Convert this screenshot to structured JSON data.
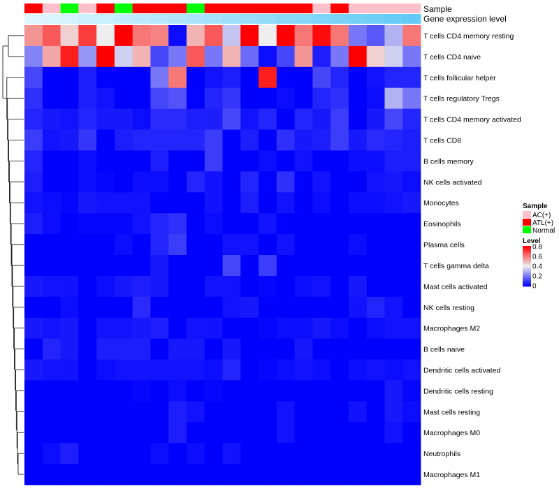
{
  "chart_data": {
    "type": "heatmap",
    "title": "",
    "annotation_labels": {
      "sample": "Sample",
      "expression": "Gene expression level"
    },
    "sample_groups": [
      "ATL(+)",
      "AC(+)",
      "Normal",
      "AC(+)",
      "ATL(+)",
      "Normal",
      "ATL(+)",
      "ATL(+)",
      "ATL(+)",
      "Normal",
      "ATL(+)",
      "ATL(+)",
      "ATL(+)",
      "ATL(+)",
      "ATL(+)",
      "ATL(+)",
      "AC(+)",
      "ATL(+)",
      "AC(+)",
      "AC(+)",
      "AC(+)",
      "AC(+)"
    ],
    "gene_expression_level": [
      0.02,
      0.05,
      0.09,
      0.14,
      0.18,
      0.23,
      0.27,
      0.32,
      0.36,
      0.41,
      0.45,
      0.5,
      0.55,
      0.59,
      0.64,
      0.68,
      0.73,
      0.77,
      0.82,
      0.86,
      0.91,
      0.95
    ],
    "rows": [
      "T cells CD4 memory resting",
      "T cells CD4 naive",
      "T cells follicular helper",
      "T cells regulatory  Tregs",
      "T cells CD4 memory activated",
      "T cells CD8",
      "B cells memory",
      "NK cells activated",
      "Monocytes",
      "Eosinophils",
      "Plasma cells",
      "T cells gamma delta",
      "Mast cells activated",
      "NK cells resting",
      "Macrophages M2",
      "B cells naive",
      "Dendritic cells activated",
      "Dendritic cells resting",
      "Mast cells resting",
      "Macrophages M0",
      "Neutrophils",
      "Macrophages M1"
    ],
    "values": [
      [
        0.55,
        0.65,
        0.45,
        0.7,
        0.4,
        0.8,
        0.6,
        0.58,
        0.02,
        0.5,
        0.65,
        0.33,
        0.8,
        0.4,
        0.8,
        0.6,
        0.78,
        0.6,
        0.2,
        0.15,
        0.3,
        0.6
      ],
      [
        0.22,
        0.52,
        0.75,
        0.25,
        0.8,
        0.35,
        0.5,
        0.12,
        0.2,
        0.65,
        0.2,
        0.5,
        0.18,
        0.02,
        0.12,
        0.55,
        0.05,
        0.2,
        0.8,
        0.45,
        0.35,
        0.2
      ],
      [
        0.12,
        0.0,
        0.0,
        0.05,
        0.0,
        0.0,
        0.0,
        0.2,
        0.6,
        0.0,
        0.03,
        0.05,
        0.0,
        0.75,
        0.0,
        0.0,
        0.12,
        0.06,
        0.0,
        0.03,
        0.06,
        0.06
      ],
      [
        0.08,
        0.0,
        0.0,
        0.05,
        0.03,
        0.0,
        0.0,
        0.12,
        0.14,
        0.0,
        0.06,
        0.09,
        0.0,
        0.0,
        0.02,
        0.0,
        0.06,
        0.08,
        0.0,
        0.02,
        0.3,
        0.2
      ],
      [
        0.06,
        0.04,
        0.03,
        0.06,
        0.04,
        0.04,
        0.02,
        0.07,
        0.07,
        0.05,
        0.05,
        0.12,
        0.03,
        0.06,
        0.0,
        0.06,
        0.04,
        0.1,
        0.0,
        0.04,
        0.12,
        0.06
      ],
      [
        0.1,
        0.03,
        0.04,
        0.09,
        0.0,
        0.05,
        0.06,
        0.06,
        0.06,
        0.06,
        0.1,
        0.0,
        0.05,
        0.0,
        0.08,
        0.04,
        0.05,
        0.1,
        0.04,
        0.07,
        0.06,
        0.05
      ],
      [
        0.06,
        0.0,
        0.0,
        0.02,
        0.0,
        0.0,
        0.0,
        0.05,
        0.0,
        0.0,
        0.1,
        0.0,
        0.0,
        0.02,
        0.0,
        0.03,
        0.0,
        0.0,
        0.02,
        0.02,
        0.05,
        0.05
      ],
      [
        0.05,
        0.0,
        0.0,
        0.02,
        0.01,
        0.0,
        0.02,
        0.02,
        0.0,
        0.06,
        0.03,
        0.0,
        0.06,
        0.0,
        0.08,
        0.0,
        0.03,
        0.0,
        0.0,
        0.03,
        0.04,
        0.02
      ],
      [
        0.03,
        0.02,
        0.01,
        0.04,
        0.03,
        0.03,
        0.03,
        0.0,
        0.0,
        0.0,
        0.03,
        0.0,
        0.05,
        0.0,
        0.03,
        0.0,
        0.02,
        0.0,
        0.02,
        0.02,
        0.03,
        0.04
      ],
      [
        0.05,
        0.02,
        0.0,
        0.01,
        0.01,
        0.01,
        0.03,
        0.06,
        0.08,
        0.0,
        0.02,
        0.0,
        0.0,
        0.03,
        0.0,
        0.0,
        0.0,
        0.0,
        0.0,
        0.0,
        0.0,
        0.0
      ],
      [
        0.0,
        0.0,
        0.0,
        0.0,
        0.0,
        0.02,
        0.0,
        0.06,
        0.1,
        0.0,
        0.0,
        0.03,
        0.03,
        0.0,
        0.03,
        0.0,
        0.0,
        0.0,
        0.02,
        0.0,
        0.0,
        0.0
      ],
      [
        0.0,
        0.0,
        0.0,
        0.0,
        0.0,
        0.0,
        0.0,
        0.04,
        0.0,
        0.0,
        0.0,
        0.12,
        0.0,
        0.1,
        0.0,
        0.0,
        0.0,
        0.0,
        0.0,
        0.0,
        0.0,
        0.0
      ],
      [
        0.04,
        0.03,
        0.03,
        0.0,
        0.02,
        0.04,
        0.05,
        0.04,
        0.0,
        0.0,
        0.03,
        0.03,
        0.0,
        0.01,
        0.0,
        0.02,
        0.03,
        0.0,
        0.04,
        0.0,
        0.0,
        0.0
      ],
      [
        0.0,
        0.0,
        0.02,
        0.0,
        0.0,
        0.0,
        0.07,
        0.0,
        0.0,
        0.0,
        0.0,
        0.03,
        0.04,
        0.0,
        0.0,
        0.0,
        0.0,
        0.0,
        0.03,
        0.06,
        0.03,
        0.0
      ],
      [
        0.04,
        0.03,
        0.04,
        0.0,
        0.03,
        0.03,
        0.04,
        0.05,
        0.0,
        0.03,
        0.03,
        0.0,
        0.0,
        0.01,
        0.02,
        0.02,
        0.04,
        0.02,
        0.0,
        0.02,
        0.03,
        0.03
      ],
      [
        0.0,
        0.06,
        0.04,
        0.0,
        0.05,
        0.05,
        0.05,
        0.0,
        0.04,
        0.04,
        0.0,
        0.04,
        0.0,
        0.0,
        0.0,
        0.04,
        0.0,
        0.0,
        0.0,
        0.0,
        0.0,
        0.0
      ],
      [
        0.04,
        0.03,
        0.03,
        0.0,
        0.02,
        0.03,
        0.03,
        0.03,
        0.03,
        0.03,
        0.02,
        0.06,
        0.0,
        0.01,
        0.02,
        0.03,
        0.02,
        0.0,
        0.02,
        0.03,
        0.02,
        0.03
      ],
      [
        0.0,
        0.0,
        0.0,
        0.0,
        0.0,
        0.0,
        0.01,
        0.0,
        0.02,
        0.0,
        0.01,
        0.0,
        0.0,
        0.0,
        0.0,
        0.0,
        0.0,
        0.0,
        0.0,
        0.0,
        0.04,
        0.01
      ],
      [
        0.0,
        0.0,
        0.0,
        0.0,
        0.0,
        0.0,
        0.0,
        0.0,
        0.05,
        0.03,
        0.0,
        0.0,
        0.0,
        0.0,
        0.03,
        0.0,
        0.0,
        0.0,
        0.03,
        0.0,
        0.04,
        0.02
      ],
      [
        0.0,
        0.0,
        0.0,
        0.0,
        0.0,
        0.0,
        0.0,
        0.0,
        0.05,
        0.0,
        0.0,
        0.0,
        0.0,
        0.0,
        0.03,
        0.0,
        0.0,
        0.0,
        0.0,
        0.0,
        0.03,
        0.0
      ],
      [
        0.0,
        0.02,
        0.05,
        0.0,
        0.0,
        0.0,
        0.0,
        0.02,
        0.0,
        0.02,
        0.0,
        0.03,
        0.0,
        0.0,
        0.0,
        0.0,
        0.0,
        0.0,
        0.0,
        0.0,
        0.0,
        0.0
      ],
      [
        0.0,
        0.0,
        0.0,
        0.0,
        0.0,
        0.0,
        0.0,
        0.0,
        0.0,
        0.0,
        0.0,
        0.0,
        0.0,
        0.0,
        0.0,
        0.0,
        0.0,
        0.0,
        0.0,
        0.0,
        0.0,
        0.0
      ]
    ],
    "legend": {
      "sample_title": "Sample",
      "sample_items": [
        {
          "label": "AC(+)",
          "color": "#ffc0cb"
        },
        {
          "label": "ATL(+)",
          "color": "#ff0000"
        },
        {
          "label": "Normal",
          "color": "#00ff00"
        }
      ],
      "level_title": "Level",
      "level_ticks": [
        "0.8",
        "0.6",
        "0.4",
        "0.2",
        "0"
      ],
      "level_range": [
        0,
        0.8
      ]
    },
    "colors": {
      "low": "#0000ff",
      "mid": "#eeeeee",
      "high": "#ff0000",
      "expr_low": "#e0f7ff",
      "expr_high": "#5bc8f5"
    }
  }
}
